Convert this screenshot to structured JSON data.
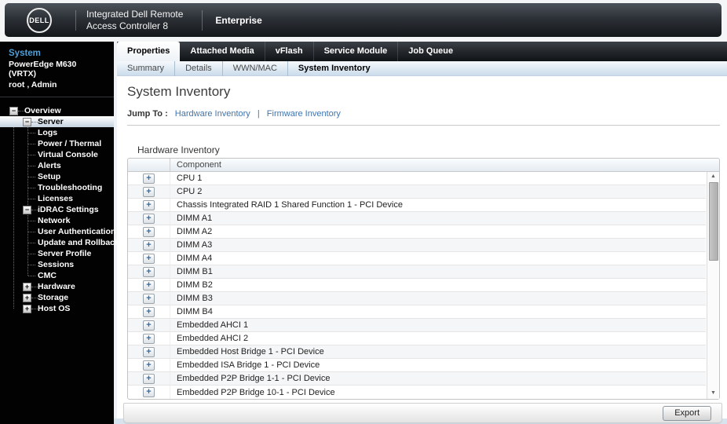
{
  "header": {
    "brand": "DELL",
    "product_line1": "Integrated Dell Remote",
    "product_line2": "Access Controller 8",
    "edition": "Enterprise"
  },
  "sidebar": {
    "system_label": "System",
    "model": "PowerEdge M630 (VRTX)",
    "user": "root , Admin",
    "minus_symbol": "−",
    "plus_symbol": "+",
    "tree": [
      {
        "label": "Overview",
        "level": 0,
        "expander": "minus",
        "selected": false
      },
      {
        "label": "Server",
        "level": 1,
        "expander": "minus",
        "selected": true
      },
      {
        "label": "Logs",
        "level": 2,
        "expander": null,
        "selected": false
      },
      {
        "label": "Power / Thermal",
        "level": 2,
        "expander": null,
        "selected": false
      },
      {
        "label": "Virtual Console",
        "level": 2,
        "expander": null,
        "selected": false
      },
      {
        "label": "Alerts",
        "level": 2,
        "expander": null,
        "selected": false
      },
      {
        "label": "Setup",
        "level": 2,
        "expander": null,
        "selected": false
      },
      {
        "label": "Troubleshooting",
        "level": 2,
        "expander": null,
        "selected": false
      },
      {
        "label": "Licenses",
        "level": 2,
        "expander": null,
        "selected": false
      },
      {
        "label": "iDRAC Settings",
        "level": 1,
        "expander": "minus",
        "selected": false
      },
      {
        "label": "Network",
        "level": 2,
        "expander": null,
        "selected": false
      },
      {
        "label": "User Authentication",
        "level": 2,
        "expander": null,
        "selected": false
      },
      {
        "label": "Update and Rollback",
        "level": 2,
        "expander": null,
        "selected": false
      },
      {
        "label": "Server Profile",
        "level": 2,
        "expander": null,
        "selected": false
      },
      {
        "label": "Sessions",
        "level": 2,
        "expander": null,
        "selected": false
      },
      {
        "label": "CMC",
        "level": 2,
        "expander": null,
        "selected": false
      },
      {
        "label": "Hardware",
        "level": 1,
        "expander": "plus",
        "selected": false
      },
      {
        "label": "Storage",
        "level": 1,
        "expander": "plus",
        "selected": false
      },
      {
        "label": "Host OS",
        "level": 1,
        "expander": "plus",
        "selected": false
      }
    ]
  },
  "tabs": {
    "items": [
      "Properties",
      "Attached Media",
      "vFlash",
      "Service Module",
      "Job Queue"
    ],
    "active": "Properties"
  },
  "subtabs": {
    "items": [
      "Summary",
      "Details",
      "WWN/MAC",
      "System Inventory"
    ],
    "active": "System Inventory"
  },
  "page": {
    "title": "System Inventory",
    "jump_to_label": "Jump To :",
    "jump_links": [
      "Hardware Inventory",
      "Firmware Inventory"
    ],
    "link_separator": "|"
  },
  "inventory": {
    "section_title": "Hardware Inventory",
    "column_header": "Component",
    "expand_symbol": "+",
    "rows": [
      "CPU 1",
      "CPU 2",
      "Chassis Integrated RAID 1 Shared Function 1 - PCI Device",
      "DIMM A1",
      "DIMM A2",
      "DIMM A3",
      "DIMM A4",
      "DIMM B1",
      "DIMM B2",
      "DIMM B3",
      "DIMM B4",
      "Embedded AHCI 1",
      "Embedded AHCI 2",
      "Embedded Host Bridge 1 - PCI Device",
      "Embedded ISA Bridge 1 - PCI Device",
      "Embedded P2P Bridge 1-1 - PCI Device",
      "Embedded P2P Bridge 10-1 - PCI Device"
    ]
  },
  "scrollbar": {
    "up": "▲",
    "down": "▼"
  },
  "footer": {
    "export_label": "Export"
  },
  "colors": {
    "link_blue": "#3f74ad",
    "system_name_blue": "#4f9fd6",
    "row_expand_blue": "#2e6da8",
    "sidebar_bg": "#000000",
    "selected_item_bg": "#c4d2df"
  }
}
